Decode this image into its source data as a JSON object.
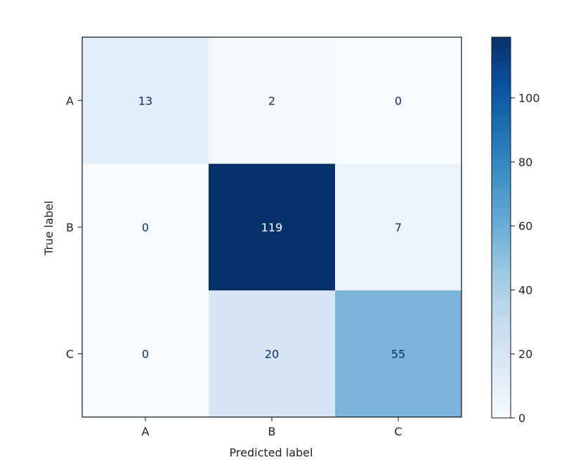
{
  "chart_data": {
    "type": "heatmap",
    "title": "",
    "xlabel": "Predicted label",
    "ylabel": "True label",
    "x_categories": [
      "A",
      "B",
      "C"
    ],
    "y_categories": [
      "A",
      "B",
      "C"
    ],
    "values": [
      [
        13,
        2,
        0
      ],
      [
        0,
        119,
        7
      ],
      [
        0,
        20,
        55
      ]
    ],
    "colormap": "Blues",
    "colorbar": {
      "range": [
        0,
        119
      ],
      "ticks": [
        0,
        20,
        40,
        60,
        80,
        100
      ]
    },
    "text_colors": {
      "light_cells": "#08306b",
      "dark_cells": "#ffffff"
    }
  }
}
